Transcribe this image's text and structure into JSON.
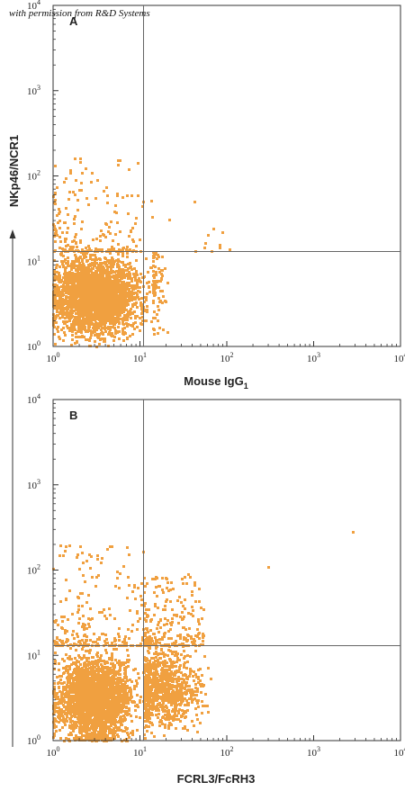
{
  "watermark": "with permission from R&D Systems",
  "y_axis_title": "NKp46/NCR1",
  "colors": {
    "dots": "#f0a040",
    "axes": "#333333",
    "gate": "#555555"
  },
  "chart_data": [
    {
      "type": "scatter",
      "panel": "A",
      "xlabel": "Mouse IgG",
      "xlabel_subscript": "1",
      "ylabel": "NKp46/NCR1",
      "xscale": "log",
      "yscale": "log",
      "xlim": [
        1,
        10000
      ],
      "ylim": [
        1,
        10000
      ],
      "xticks": [
        {
          "v": 1,
          "b": "10",
          "e": "0"
        },
        {
          "v": 10,
          "b": "10",
          "e": "1"
        },
        {
          "v": 100,
          "b": "10",
          "e": "2"
        },
        {
          "v": 1000,
          "b": "10",
          "e": "3"
        },
        {
          "v": 10000,
          "b": "10",
          "e": "4"
        }
      ],
      "yticks": [
        {
          "v": 1,
          "b": "10",
          "e": "0"
        },
        {
          "v": 10,
          "b": "10",
          "e": "1"
        },
        {
          "v": 100,
          "b": "10",
          "e": "2"
        },
        {
          "v": 1000,
          "b": "10",
          "e": "3"
        },
        {
          "v": 10000,
          "b": "10",
          "e": "4"
        }
      ],
      "quadrant_gate": {
        "x": 11,
        "y": 13
      },
      "populations": [
        {
          "kind": "cloud",
          "n": 2600,
          "xrange": [
            1,
            14
          ],
          "yrange": [
            1,
            14
          ],
          "xpeak": 3,
          "ypeak": 4
        },
        {
          "kind": "cloud",
          "n": 90,
          "xrange": [
            14,
            22
          ],
          "yrange": [
            1,
            13
          ],
          "xpeak": 15,
          "ypeak": 5
        },
        {
          "kind": "sparse",
          "n": 190,
          "xrange": [
            1,
            11
          ],
          "yrange": [
            13,
            160
          ]
        },
        {
          "kind": "sparse",
          "n": 14,
          "xrange": [
            11,
            130
          ],
          "yrange": [
            13,
            60
          ]
        }
      ]
    },
    {
      "type": "scatter",
      "panel": "B",
      "xlabel": "FCRL3/FcRH3",
      "ylabel": "NKp46/NCR1",
      "xscale": "log",
      "yscale": "log",
      "xlim": [
        1,
        10000
      ],
      "ylim": [
        1,
        10000
      ],
      "xticks": [
        {
          "v": 1,
          "b": "10",
          "e": "0"
        },
        {
          "v": 10,
          "b": "10",
          "e": "1"
        },
        {
          "v": 100,
          "b": "10",
          "e": "2"
        },
        {
          "v": 1000,
          "b": "10",
          "e": "3"
        },
        {
          "v": 10000,
          "b": "10",
          "e": "4"
        }
      ],
      "yticks": [
        {
          "v": 1,
          "b": "10",
          "e": "0"
        },
        {
          "v": 10,
          "b": "10",
          "e": "1"
        },
        {
          "v": 100,
          "b": "10",
          "e": "2"
        },
        {
          "v": 1000,
          "b": "10",
          "e": "3"
        },
        {
          "v": 10000,
          "b": "10",
          "e": "4"
        }
      ],
      "quadrant_gate": {
        "x": 11,
        "y": 13
      },
      "populations": [
        {
          "kind": "cloud",
          "n": 2500,
          "xrange": [
            1,
            11
          ],
          "yrange": [
            1,
            13
          ],
          "xpeak": 3,
          "ypeak": 3
        },
        {
          "kind": "cloud",
          "n": 900,
          "xrange": [
            11,
            70
          ],
          "yrange": [
            1,
            13
          ],
          "xpeak": 18,
          "ypeak": 4
        },
        {
          "kind": "sparse",
          "n": 230,
          "xrange": [
            1,
            11
          ],
          "yrange": [
            13,
            200
          ]
        },
        {
          "kind": "sparse",
          "n": 240,
          "xrange": [
            11,
            55
          ],
          "yrange": [
            13,
            90
          ]
        },
        {
          "kind": "point",
          "x": 300,
          "y": 110
        },
        {
          "kind": "point",
          "x": 2800,
          "y": 280
        }
      ]
    }
  ]
}
